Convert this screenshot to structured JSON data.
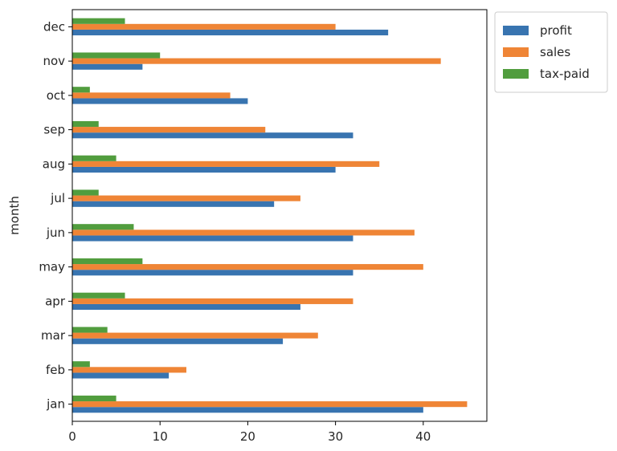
{
  "chart_data": {
    "type": "bar",
    "orientation": "horizontal",
    "categories": [
      "jan",
      "feb",
      "mar",
      "apr",
      "may",
      "jun",
      "jul",
      "aug",
      "sep",
      "oct",
      "nov",
      "dec"
    ],
    "series": [
      {
        "name": "profit",
        "color": "#3874b0",
        "values": [
          40,
          11,
          24,
          26,
          32,
          32,
          23,
          30,
          32,
          20,
          8,
          36
        ]
      },
      {
        "name": "sales",
        "color": "#ef8536",
        "values": [
          45,
          13,
          28,
          32,
          40,
          39,
          26,
          35,
          22,
          18,
          42,
          30
        ]
      },
      {
        "name": "tax-paid",
        "color": "#519d3e",
        "values": [
          5,
          2,
          4,
          6,
          8,
          7,
          3,
          5,
          3,
          2,
          10,
          6
        ]
      }
    ],
    "xlim": [
      0,
      47.25
    ],
    "xticks": [
      0,
      10,
      20,
      30,
      40
    ],
    "xlabel": "",
    "ylabel": "month",
    "grid": false,
    "legend_position": "outside-top-right"
  }
}
